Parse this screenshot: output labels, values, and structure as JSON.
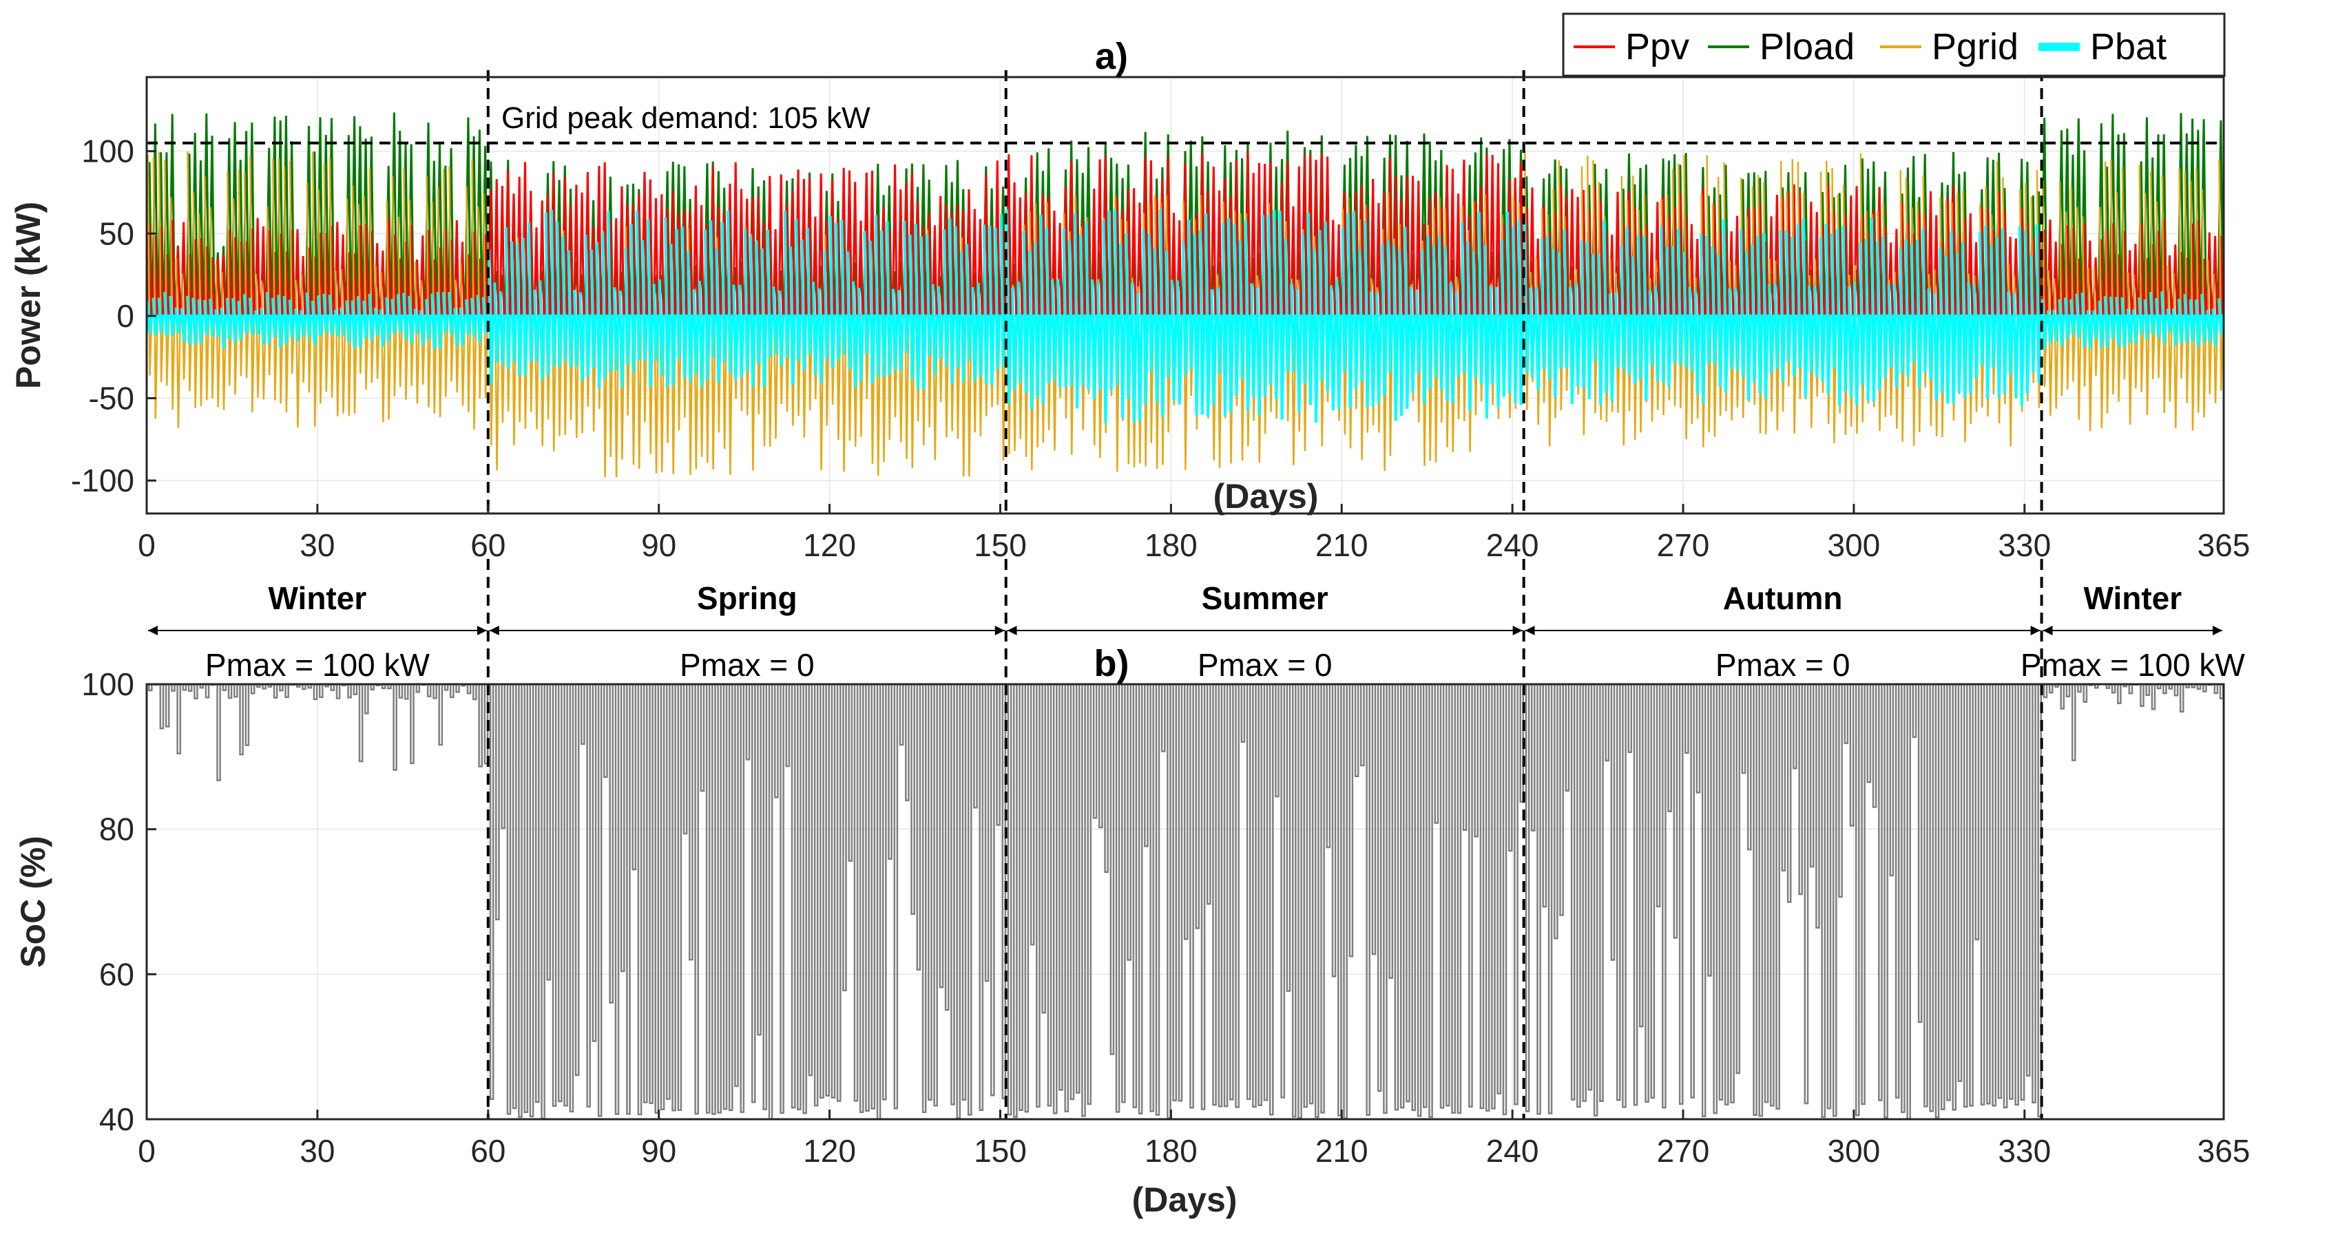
{
  "chart_data": [
    {
      "type": "line",
      "panel_label": "a)",
      "xlabel": "(Days)",
      "ylabel": "Power (kW)",
      "xlim": [
        0,
        365
      ],
      "ylim": [
        -120,
        145
      ],
      "xticks": [
        0,
        30,
        60,
        90,
        120,
        150,
        180,
        210,
        240,
        270,
        300,
        330,
        365
      ],
      "yticks": [
        -100,
        -50,
        0,
        50,
        100
      ],
      "grid": true,
      "legend_position": "top-right",
      "series": [
        {
          "name": "Ppv",
          "color": "#ff0000"
        },
        {
          "name": "Pload",
          "color": "#007a00"
        },
        {
          "name": "Pgrid",
          "color": "#e6a817"
        },
        {
          "name": "Pbat",
          "color": "#00ffff"
        }
      ],
      "annotation": {
        "text": "Grid peak demand: 105 kW",
        "value": 105
      },
      "season_boundaries": [
        60,
        151,
        242,
        333
      ],
      "seasons": [
        {
          "name": "Winter",
          "start": 0,
          "end": 60,
          "pmax": "Pmax = 100 kW"
        },
        {
          "name": "Spring",
          "start": 60,
          "end": 151,
          "pmax": "Pmax = 0"
        },
        {
          "name": "Summer",
          "start": 151,
          "end": 242,
          "pmax": "Pmax = 0"
        },
        {
          "name": "Autumn",
          "start": 242,
          "end": 333,
          "pmax": "Pmax = 0"
        },
        {
          "name": "Winter",
          "start": 333,
          "end": 365,
          "pmax": "Pmax = 100 kW"
        }
      ],
      "seasonal_envelope": [
        {
          "season": "Winter",
          "pv_peak_kW": 60,
          "load_peak_kW": 125,
          "grid_max_kW": 100,
          "grid_min_kW": -70,
          "bat_max_kW": 15,
          "bat_min_kW": -20
        },
        {
          "season": "Spring",
          "pv_peak_kW": 95,
          "load_peak_kW": 95,
          "grid_max_kW": 55,
          "grid_min_kW": -100,
          "bat_max_kW": 65,
          "bat_min_kW": -45
        },
        {
          "season": "Summer",
          "pv_peak_kW": 100,
          "load_peak_kW": 115,
          "grid_max_kW": 75,
          "grid_min_kW": -95,
          "bat_max_kW": 65,
          "bat_min_kW": -65
        },
        {
          "season": "Autumn",
          "pv_peak_kW": 80,
          "load_peak_kW": 100,
          "grid_max_kW": 100,
          "grid_min_kW": -80,
          "bat_max_kW": 60,
          "bat_min_kW": -55
        }
      ]
    },
    {
      "type": "line",
      "panel_label": "b)",
      "xlabel": "(Days)",
      "ylabel": "SoC (%)",
      "xlim": [
        0,
        365
      ],
      "ylim": [
        40,
        100
      ],
      "xticks": [
        0,
        30,
        60,
        90,
        120,
        150,
        180,
        210,
        240,
        270,
        300,
        330,
        365
      ],
      "yticks": [
        40,
        60,
        80,
        100
      ],
      "grid": true,
      "series": [
        {
          "name": "SoC",
          "color": "#7f7f7f"
        }
      ],
      "season_boundaries": [
        60,
        151,
        242,
        333
      ],
      "seasonal_soc_range": [
        {
          "season": "Winter",
          "min": 86,
          "max": 100
        },
        {
          "season": "Spring",
          "min": 40,
          "max": 100
        },
        {
          "season": "Summer",
          "min": 40,
          "max": 100
        },
        {
          "season": "Autumn",
          "min": 40,
          "max": 100
        },
        {
          "season": "Winter",
          "min": 88,
          "max": 100
        }
      ]
    }
  ]
}
